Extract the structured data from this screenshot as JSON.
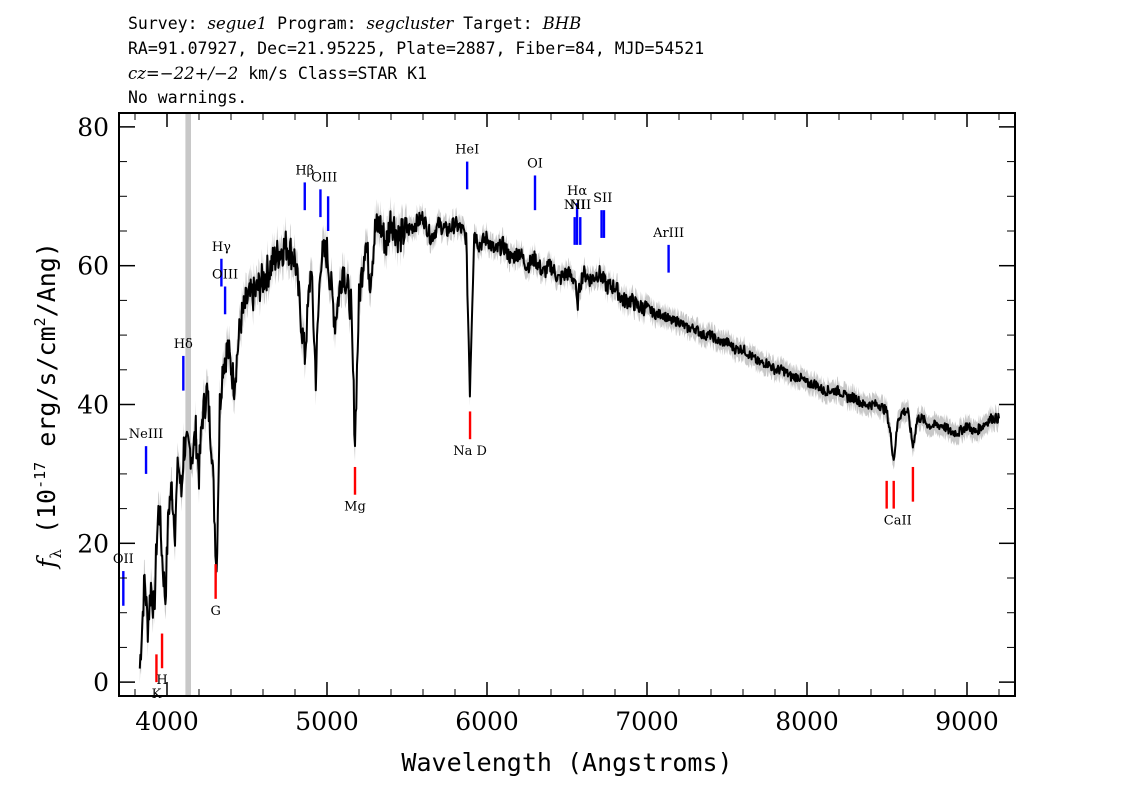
{
  "header": {
    "line1": {
      "survey_label": "Survey:",
      "survey": "segue1",
      "program_label": "Program:",
      "program": "segcluster",
      "target_label": "Target:",
      "target": "BHB"
    },
    "line2": "RA=91.07927, Dec=21.95225, Plate=2887, Fiber=84, MJD=54521",
    "line3": {
      "cz_label": "cz=",
      "cz": "−22+/−2",
      "rest": " km/s Class=STAR K1"
    },
    "line4": "No warnings."
  },
  "chart_data": {
    "type": "line",
    "xlabel": "Wavelength (Angstroms)",
    "ylabel": "fλ (10⁻¹⁷ erg/s/cm²/Ang)",
    "xlim": [
      3700,
      9300
    ],
    "ylim": [
      -2,
      82
    ],
    "xticks": [
      4000,
      5000,
      6000,
      7000,
      8000,
      9000
    ],
    "yticks": [
      0,
      20,
      40,
      60,
      80
    ],
    "masked_band": [
      4115,
      4150
    ],
    "colors": {
      "flux": "#000000",
      "error_band": "#c8c8c8",
      "emission": "#0000ff",
      "absorption": "#ff0000",
      "mask": "#c8c8c8"
    },
    "series": [
      {
        "x": [
          3830,
          3860,
          3880,
          3900,
          3920,
          3935,
          3950,
          3970,
          3990,
          4010,
          4030,
          4050,
          4070,
          4090,
          4105,
          4160,
          4180,
          4200,
          4220,
          4250,
          4280,
          4310,
          4330,
          4350,
          4380,
          4420,
          4460,
          4500,
          4550,
          4600,
          4650,
          4700,
          4750,
          4800,
          4861,
          4900,
          4930,
          4960,
          5000,
          5050,
          5100,
          5150,
          5175,
          5200,
          5240,
          5270,
          5300,
          5330,
          5370,
          5400,
          5450,
          5500,
          5550,
          5600,
          5650,
          5700,
          5750,
          5800,
          5850,
          5870,
          5893,
          5920,
          5950,
          6000,
          6050,
          6100,
          6150,
          6200,
          6250,
          6300,
          6350,
          6400,
          6450,
          6500,
          6550,
          6563,
          6580,
          6600,
          6650,
          6700,
          6750,
          6800,
          6850,
          6900,
          6950,
          7000,
          7050,
          7100,
          7150,
          7200,
          7250,
          7300,
          7350,
          7400,
          7450,
          7500,
          7550,
          7600,
          7650,
          7700,
          7750,
          7800,
          7850,
          7900,
          7950,
          8000,
          8050,
          8100,
          8150,
          8200,
          8250,
          8300,
          8350,
          8400,
          8450,
          8498,
          8520,
          8542,
          8570,
          8600,
          8630,
          8662,
          8690,
          8720,
          8760,
          8800,
          8850,
          8900,
          8950,
          9000,
          9050,
          9100,
          9150,
          9200
        ],
        "y": [
          2,
          15,
          8,
          14,
          10,
          20,
          26,
          18,
          12,
          25,
          28,
          22,
          32,
          27,
          34,
          33,
          36,
          30,
          38,
          42,
          34,
          16,
          40,
          46,
          48,
          43,
          52,
          55,
          56,
          58,
          60,
          62,
          63,
          61,
          47,
          60,
          44,
          61,
          62,
          52,
          60,
          54,
          35,
          55,
          64,
          58,
          65,
          66,
          63,
          67,
          64,
          65,
          66,
          67,
          64,
          66,
          65,
          66,
          65,
          64,
          42,
          65,
          63,
          64,
          62,
          63,
          61,
          62,
          60,
          61,
          59,
          60,
          58,
          59,
          58,
          54,
          57,
          59,
          58,
          59,
          57,
          57,
          55,
          55,
          54,
          54,
          53,
          53,
          52,
          52,
          51,
          51,
          50,
          50,
          49,
          49,
          48,
          48,
          47,
          46,
          46,
          45,
          45,
          44,
          44,
          43,
          43,
          42,
          42,
          42,
          41,
          41,
          40,
          40,
          40,
          39,
          36,
          32,
          38,
          39,
          39,
          34,
          38,
          38,
          37,
          37,
          37,
          36,
          36,
          37,
          36,
          37,
          38,
          38
        ]
      }
    ],
    "emission_lines": [
      {
        "label": "OII",
        "x": 3727,
        "y0": 11,
        "y1": 16
      },
      {
        "label": "NeIII",
        "x": 3869,
        "y0": 30,
        "y1": 34
      },
      {
        "label": "Hδ",
        "x": 4102,
        "y0": 42,
        "y1": 47
      },
      {
        "label": "Hγ",
        "x": 4340,
        "y0": 57,
        "y1": 61
      },
      {
        "label": "OIII",
        "x": 4363,
        "y0": 53,
        "y1": 57
      },
      {
        "label": "Hβ",
        "x": 4861,
        "y0": 68,
        "y1": 72
      },
      {
        "label": "OIII",
        "x": 4959,
        "y0": 67,
        "y1": 71
      },
      {
        "label": "OIII",
        "x": 5007,
        "y0": 65,
        "y1": 70
      },
      {
        "label": "HeI",
        "x": 5876,
        "y0": 71,
        "y1": 75
      },
      {
        "label": "OI",
        "x": 6300,
        "y0": 68,
        "y1": 73
      },
      {
        "label": "NII",
        "x": 6548,
        "y0": 63,
        "y1": 67
      },
      {
        "label": "Hα",
        "x": 6563,
        "y0": 63,
        "y1": 69
      },
      {
        "label": "NII",
        "x": 6583,
        "y0": 63,
        "y1": 67
      },
      {
        "label": "SII",
        "x": 6716,
        "y0": 64,
        "y1": 68
      },
      {
        "label": "SII",
        "x": 6731,
        "y0": 64,
        "y1": 68
      },
      {
        "label": "ArIII",
        "x": 7135,
        "y0": 59,
        "y1": 63
      }
    ],
    "absorption_lines": [
      {
        "label": "K",
        "x": 3934,
        "y0": 0,
        "y1": 4
      },
      {
        "label": "H",
        "x": 3969,
        "y0": 2,
        "y1": 7
      },
      {
        "label": "G",
        "x": 4304,
        "y0": 12,
        "y1": 17
      },
      {
        "label": "Mg",
        "x": 5175,
        "y0": 27,
        "y1": 31
      },
      {
        "label": "Na D",
        "x": 5894,
        "y0": 35,
        "y1": 39
      },
      {
        "label": "CaII",
        "x": 8498,
        "y0": 25,
        "y1": 29
      },
      {
        "label": "CaII",
        "x": 8542,
        "y0": 25,
        "y1": 29
      },
      {
        "label": "CaII",
        "x": 8662,
        "y0": 26,
        "y1": 31
      }
    ]
  }
}
